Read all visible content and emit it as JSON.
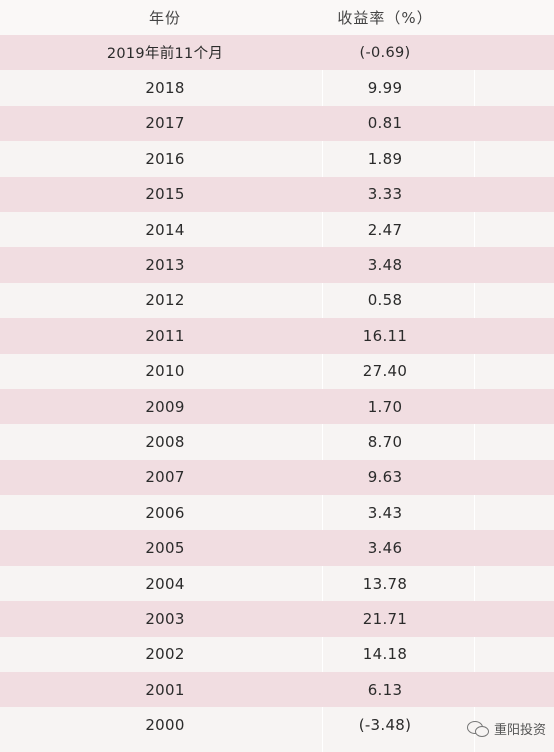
{
  "table": {
    "headers": {
      "year": "年份",
      "return": "收益率（%）"
    },
    "rows": [
      {
        "year": "2019年前11个月",
        "return": "(-0.69)"
      },
      {
        "year": "2018",
        "return": "9.99"
      },
      {
        "year": "2017",
        "return": "0.81"
      },
      {
        "year": "2016",
        "return": "1.89"
      },
      {
        "year": "2015",
        "return": "3.33"
      },
      {
        "year": "2014",
        "return": "2.47"
      },
      {
        "year": "2013",
        "return": "3.48"
      },
      {
        "year": "2012",
        "return": "0.58"
      },
      {
        "year": "2011",
        "return": "16.11"
      },
      {
        "year": "2010",
        "return": "27.40"
      },
      {
        "year": "2009",
        "return": "1.70"
      },
      {
        "year": "2008",
        "return": "8.70"
      },
      {
        "year": "2007",
        "return": "9.63"
      },
      {
        "year": "2006",
        "return": "3.43"
      },
      {
        "year": "2005",
        "return": "3.46"
      },
      {
        "year": "2004",
        "return": "13.78"
      },
      {
        "year": "2003",
        "return": "21.71"
      },
      {
        "year": "2002",
        "return": "14.18"
      },
      {
        "year": "2001",
        "return": "6.13"
      },
      {
        "year": "2000",
        "return": "(-3.48)"
      }
    ]
  },
  "watermark": {
    "icon": "wechat-icon",
    "text": "重阳投资"
  },
  "colors": {
    "stripe": "#f1dde1",
    "background": "#f7f4f3"
  }
}
